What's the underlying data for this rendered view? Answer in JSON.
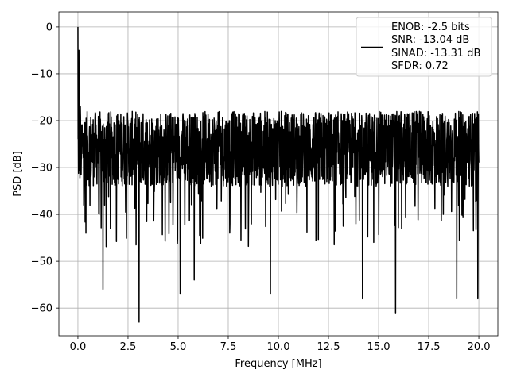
{
  "chart_data": {
    "type": "line",
    "title": "",
    "xlabel": "Frequency [MHz]",
    "ylabel": "PSD [dB]",
    "xlim": [
      -0.95,
      20.95
    ],
    "ylim": [
      -65.9,
      3.2
    ],
    "xticks": [
      0.0,
      2.5,
      5.0,
      7.5,
      10.0,
      12.5,
      15.0,
      17.5,
      20.0
    ],
    "xtick_labels": [
      "0.0",
      "2.5",
      "5.0",
      "7.5",
      "10.0",
      "12.5",
      "15.0",
      "17.5",
      "20.0"
    ],
    "yticks": [
      0,
      -10,
      -20,
      -30,
      -40,
      -50,
      -60
    ],
    "ytick_labels": [
      "0",
      "−10",
      "−20",
      "−30",
      "−40",
      "−50",
      "−60"
    ],
    "grid": true,
    "legend_position": "top-right",
    "line_color": "#000000",
    "series": [
      {
        "legend_lines": [
          "ENOB: -2.5 bits",
          "SNR: -13.04 dB",
          "SINAD: -13.31 dB",
          "SFDR: 0.72"
        ],
        "freq_range_mhz": [
          0,
          20
        ],
        "noise_floor_db": [
          -34,
          -18
        ],
        "peaks": [
          {
            "x": 0.0,
            "y": 0
          },
          {
            "x": 0.05,
            "y": -5
          },
          {
            "x": 0.12,
            "y": -17
          },
          {
            "x": 0.18,
            "y": -28
          },
          {
            "x": 0.4,
            "y": -44
          },
          {
            "x": 1.25,
            "y": -56
          },
          {
            "x": 3.05,
            "y": -63
          },
          {
            "x": 5.1,
            "y": -57
          },
          {
            "x": 5.8,
            "y": -54
          },
          {
            "x": 9.6,
            "y": -57
          },
          {
            "x": 14.2,
            "y": -58
          },
          {
            "x": 15.85,
            "y": -61
          },
          {
            "x": 18.9,
            "y": -58
          },
          {
            "x": 19.95,
            "y": -58
          }
        ]
      }
    ]
  }
}
